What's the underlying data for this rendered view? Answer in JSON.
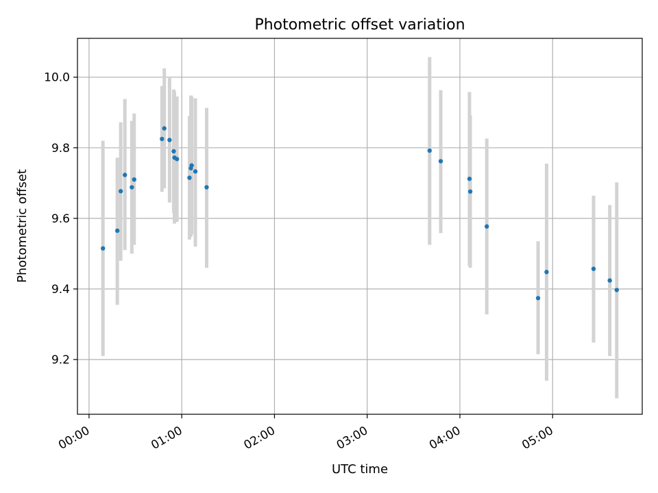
{
  "chart_data": {
    "type": "scatter",
    "title": "Photometric offset variation",
    "xlabel": "UTC time",
    "ylabel": "Photometric offset",
    "x_unit": "minutes after 00:00 UTC",
    "xlim": [
      -7.5,
      358
    ],
    "ylim": [
      9.045,
      10.11
    ],
    "grid": true,
    "x_ticks": [
      {
        "value": 0,
        "label": "00:00"
      },
      {
        "value": 60,
        "label": "01:00"
      },
      {
        "value": 120,
        "label": "02:00"
      },
      {
        "value": 180,
        "label": "03:00"
      },
      {
        "value": 240,
        "label": "04:00"
      },
      {
        "value": 300,
        "label": "05:00"
      }
    ],
    "y_ticks": [
      {
        "value": 9.2,
        "label": "9.2"
      },
      {
        "value": 9.4,
        "label": "9.4"
      },
      {
        "value": 9.6,
        "label": "9.6"
      },
      {
        "value": 9.8,
        "label": "9.8"
      },
      {
        "value": 10.0,
        "label": "10.0"
      }
    ],
    "colors": {
      "point": "#1f77b4",
      "errorbar": "#d3d3d3"
    },
    "points": [
      {
        "x": 9.0,
        "y": 9.515,
        "lo": 9.21,
        "hi": 9.82
      },
      {
        "x": 18.3,
        "y": 9.565,
        "lo": 9.355,
        "hi": 9.772
      },
      {
        "x": 20.5,
        "y": 9.677,
        "lo": 9.48,
        "hi": 9.872
      },
      {
        "x": 23.2,
        "y": 9.723,
        "lo": 9.51,
        "hi": 9.938
      },
      {
        "x": 27.7,
        "y": 9.688,
        "lo": 9.5,
        "hi": 9.876
      },
      {
        "x": 29.2,
        "y": 9.71,
        "lo": 9.525,
        "hi": 9.897
      },
      {
        "x": 47.2,
        "y": 9.825,
        "lo": 9.675,
        "hi": 9.975
      },
      {
        "x": 48.7,
        "y": 9.855,
        "lo": 9.685,
        "hi": 10.025
      },
      {
        "x": 52.1,
        "y": 9.822,
        "lo": 9.645,
        "hi": 9.998
      },
      {
        "x": 54.8,
        "y": 9.79,
        "lo": 9.615,
        "hi": 9.965
      },
      {
        "x": 55.3,
        "y": 9.772,
        "lo": 9.585,
        "hi": 9.96
      },
      {
        "x": 56.9,
        "y": 9.768,
        "lo": 9.59,
        "hi": 9.945
      },
      {
        "x": 65.0,
        "y": 9.715,
        "lo": 9.54,
        "hi": 9.89
      },
      {
        "x": 65.9,
        "y": 9.742,
        "lo": 9.548,
        "hi": 9.948
      },
      {
        "x": 66.4,
        "y": 9.75,
        "lo": 9.555,
        "hi": 9.945
      },
      {
        "x": 68.8,
        "y": 9.733,
        "lo": 9.52,
        "hi": 9.94
      },
      {
        "x": 76.1,
        "y": 9.688,
        "lo": 9.46,
        "hi": 9.913
      },
      {
        "x": 220.4,
        "y": 9.792,
        "lo": 9.525,
        "hi": 10.057
      },
      {
        "x": 227.6,
        "y": 9.762,
        "lo": 9.558,
        "hi": 9.963
      },
      {
        "x": 246.2,
        "y": 9.712,
        "lo": 9.465,
        "hi": 9.958
      },
      {
        "x": 246.7,
        "y": 9.676,
        "lo": 9.46,
        "hi": 9.892
      },
      {
        "x": 257.4,
        "y": 9.577,
        "lo": 9.328,
        "hi": 9.826
      },
      {
        "x": 290.6,
        "y": 9.374,
        "lo": 9.215,
        "hi": 9.535
      },
      {
        "x": 296.1,
        "y": 9.448,
        "lo": 9.14,
        "hi": 9.755
      },
      {
        "x": 326.5,
        "y": 9.457,
        "lo": 9.248,
        "hi": 9.664
      },
      {
        "x": 337.0,
        "y": 9.424,
        "lo": 9.21,
        "hi": 9.638
      },
      {
        "x": 341.5,
        "y": 9.397,
        "lo": 9.09,
        "hi": 9.702
      }
    ]
  }
}
